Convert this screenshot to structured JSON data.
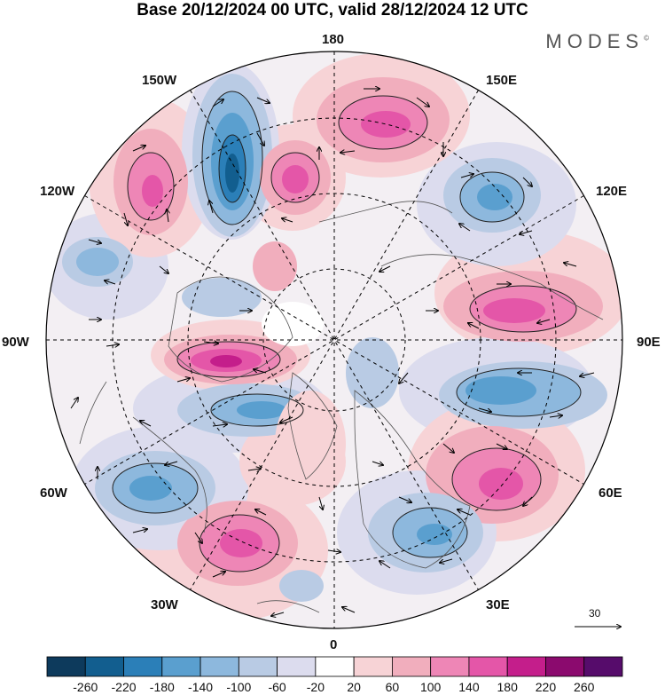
{
  "title": "Base 20/12/2024 00 UTC, valid 28/12/2024 12 UTC",
  "brand": "MODES",
  "brand_mark": "©",
  "longitude_labels": {
    "top": "180",
    "top_right": "150E",
    "right_upper": "120E",
    "right": "90E",
    "right_lower": "60E",
    "bottom_right": "30E",
    "bottom": "0",
    "bottom_left": "30W",
    "left_lower": "60W",
    "left": "90W",
    "left_upper": "120W",
    "top_left": "150W"
  },
  "vector_scale": {
    "value": "30"
  },
  "colorbar": {
    "ticks": [
      "-260",
      "-220",
      "-180",
      "-140",
      "-100",
      "-60",
      "-20",
      "20",
      "60",
      "100",
      "140",
      "180",
      "220",
      "260"
    ],
    "colors": [
      "#0d3a5c",
      "#125e8f",
      "#2b7fb8",
      "#5a9fcf",
      "#8db8dd",
      "#b9cbe4",
      "#dcdcee",
      "#ffffff",
      "#f7d3d6",
      "#f1aebd",
      "#ee86b6",
      "#e456a8",
      "#c41e8b",
      "#8b0a6e",
      "#560c6b"
    ]
  },
  "icons": [
    "north-pole-map",
    "wind-arrow-icon"
  ]
}
